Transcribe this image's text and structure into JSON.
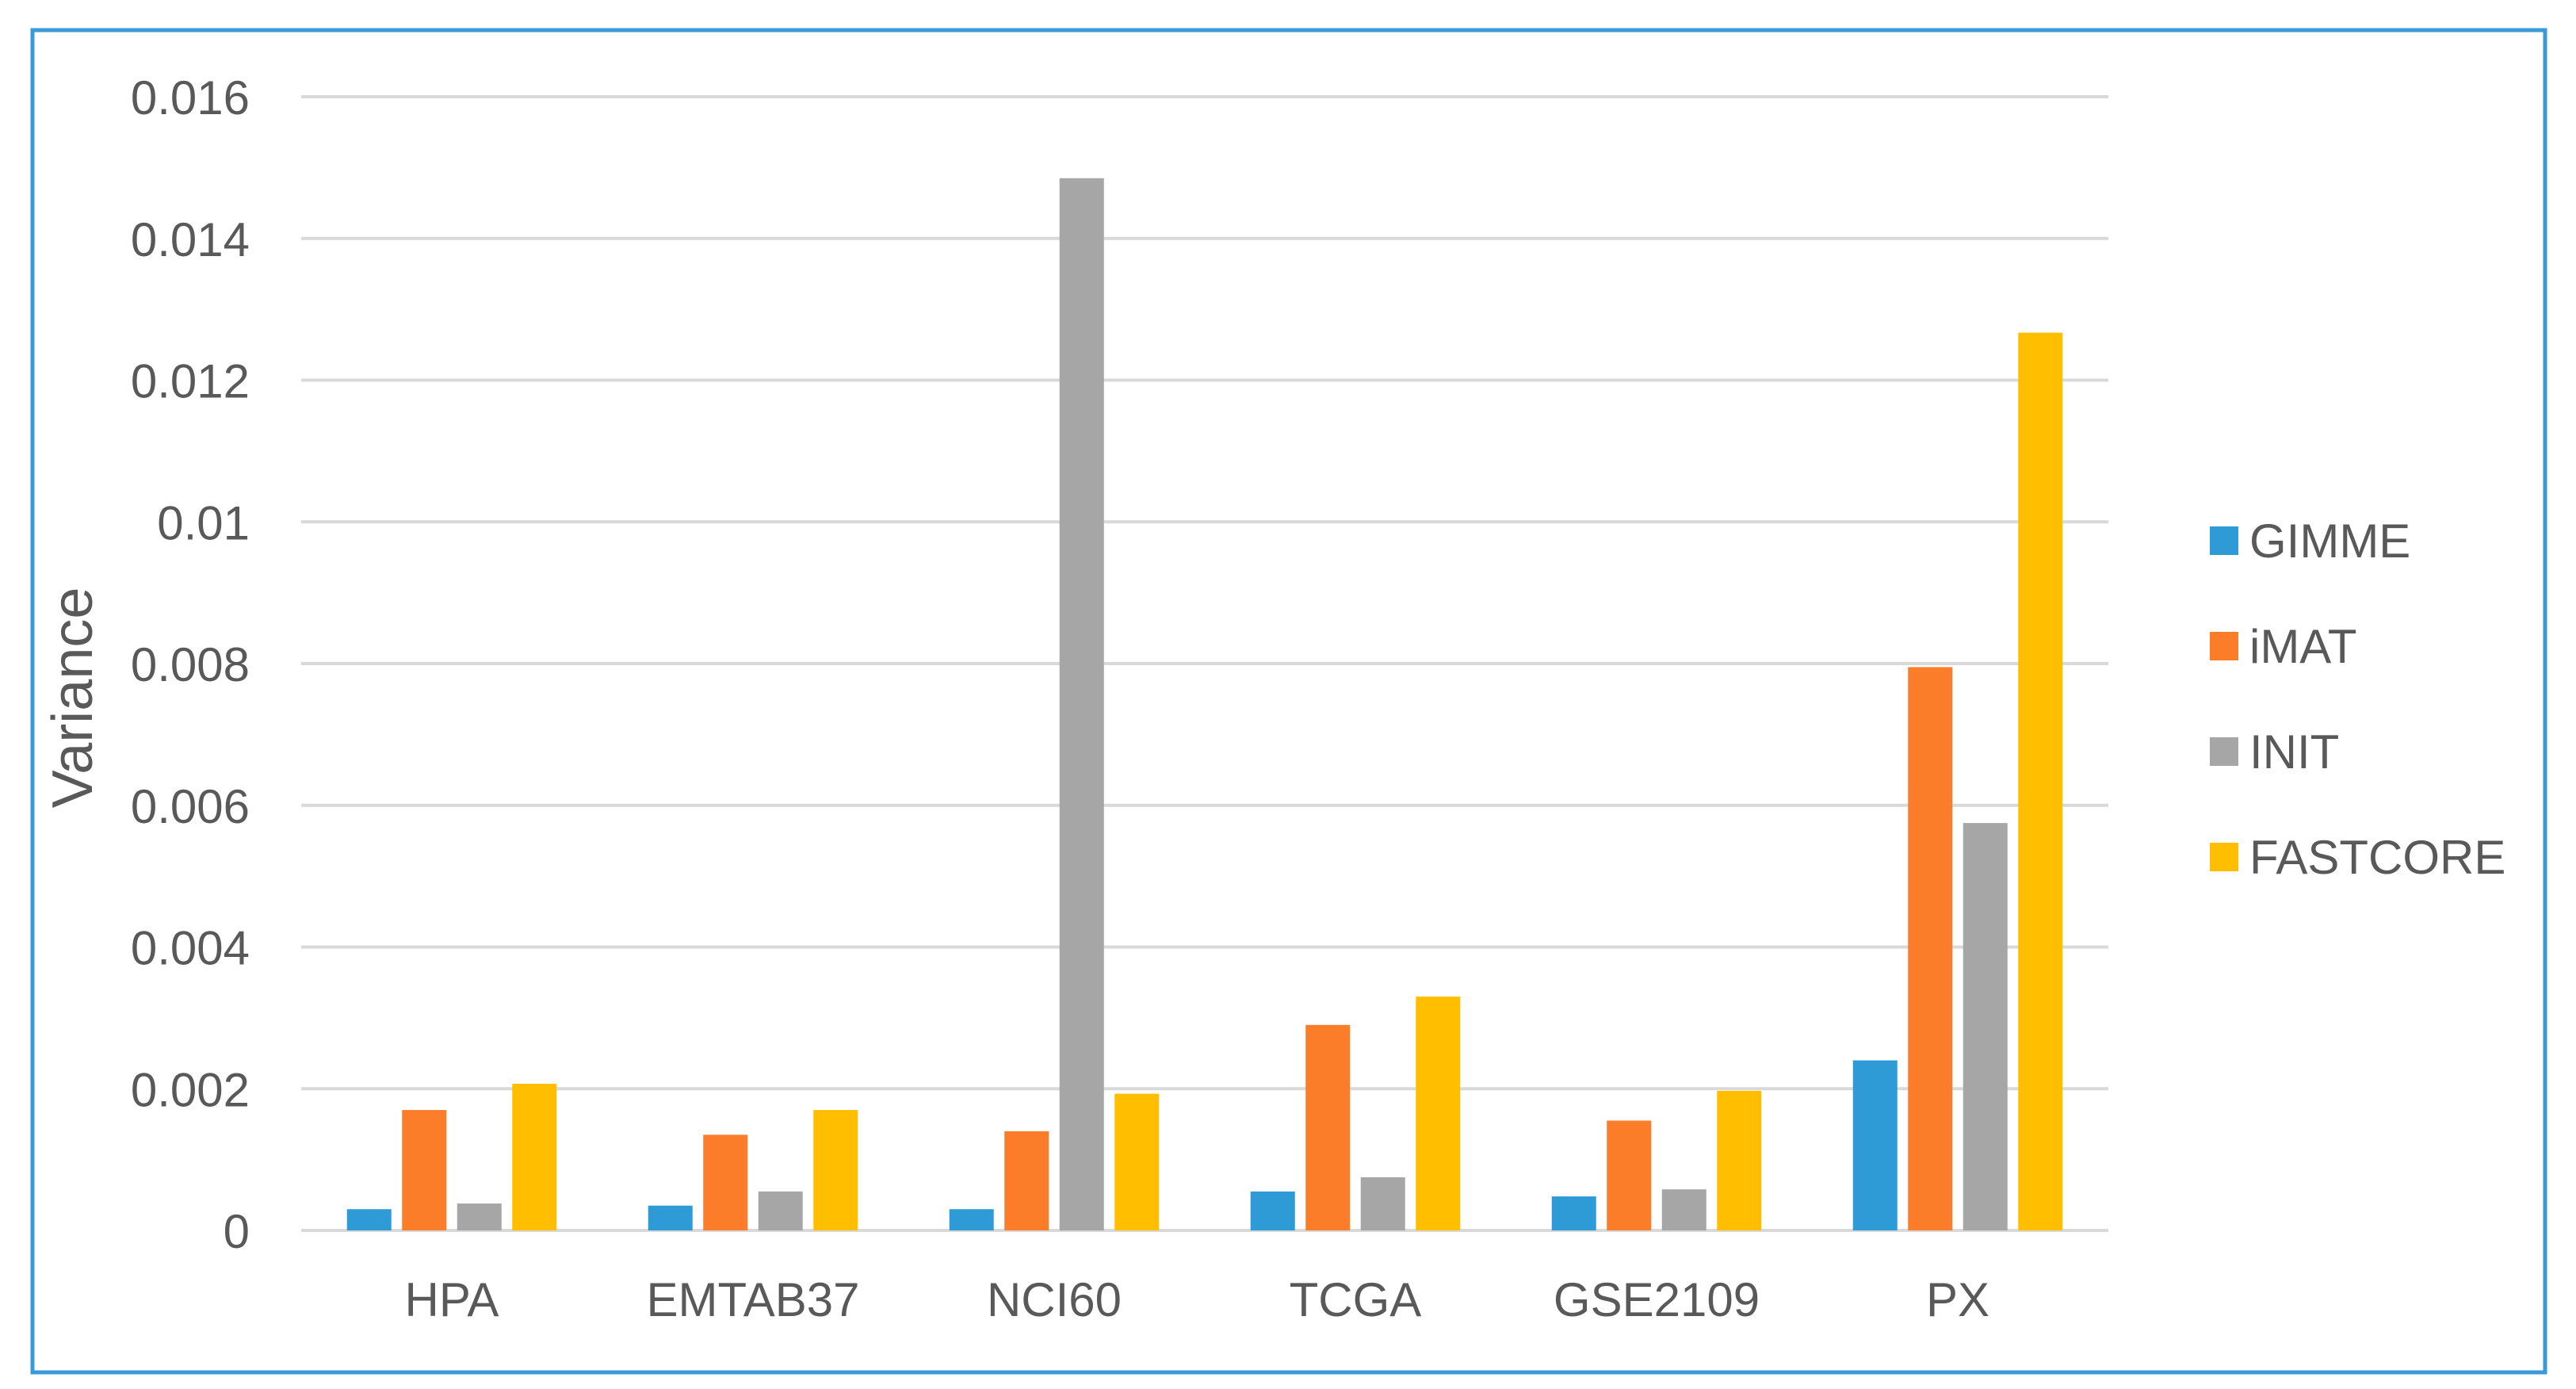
{
  "chart_data": {
    "type": "bar",
    "title": "",
    "xlabel": "",
    "ylabel": "Variance",
    "ylim": [
      0,
      0.016
    ],
    "yticks": [
      0,
      0.002,
      0.004,
      0.006,
      0.008,
      0.01,
      0.012,
      0.014,
      0.016
    ],
    "ytick_labels": [
      "0",
      "0.002",
      "0.004",
      "0.006",
      "0.008",
      "0.01",
      "0.012",
      "0.014",
      "0.016"
    ],
    "grid": true,
    "legend_position": "right",
    "categories": [
      "HPA",
      "EMTAB37",
      "NCI60",
      "TCGA",
      "GSE2109",
      "PX"
    ],
    "series": [
      {
        "name": "GIMME",
        "color": "#2e9bd6",
        "values": [
          0.0003,
          0.00035,
          0.0003,
          0.00055,
          0.00048,
          0.0024
        ]
      },
      {
        "name": "iMAT",
        "color": "#fb7d29",
        "values": [
          0.0017,
          0.00135,
          0.0014,
          0.0029,
          0.00155,
          0.00795
        ]
      },
      {
        "name": "INIT",
        "color": "#a6a6a6",
        "values": [
          0.00038,
          0.00055,
          0.01485,
          0.00075,
          0.00058,
          0.00575
        ]
      },
      {
        "name": "FASTCORE",
        "color": "#ffbf00",
        "values": [
          0.00207,
          0.0017,
          0.00193,
          0.0033,
          0.00197,
          0.01267
        ]
      }
    ]
  },
  "frame_color": "#3a99d9",
  "grid_color": "#d9d9d9"
}
